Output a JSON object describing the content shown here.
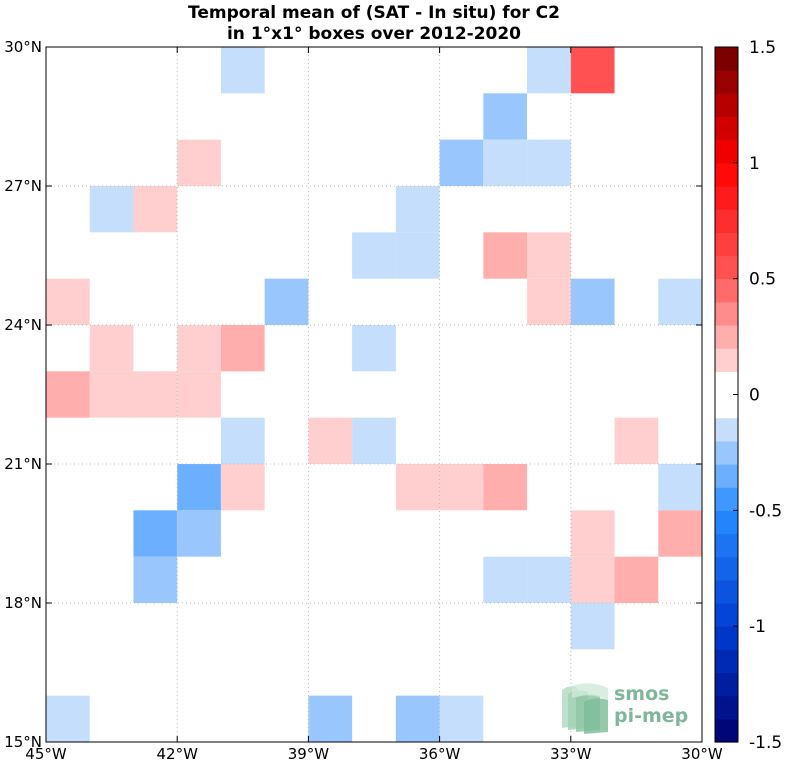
{
  "chart_data": {
    "type": "heatmap",
    "title_lines": [
      "Temporal mean of (SAT - In situ) for C2",
      "in 1°x1° boxes over 2012-2020"
    ],
    "xlim": [
      -45,
      -30
    ],
    "ylim": [
      15,
      30
    ],
    "x_ticks": [
      {
        "value": -45,
        "label": "45°W"
      },
      {
        "value": -42,
        "label": "42°W"
      },
      {
        "value": -39,
        "label": "39°W"
      },
      {
        "value": -36,
        "label": "36°W"
      },
      {
        "value": -33,
        "label": "33°W"
      },
      {
        "value": -30,
        "label": "30°W"
      }
    ],
    "y_ticks": [
      {
        "value": 15,
        "label": "15°N"
      },
      {
        "value": 18,
        "label": "18°N"
      },
      {
        "value": 21,
        "label": "21°N"
      },
      {
        "value": 24,
        "label": "24°N"
      },
      {
        "value": 27,
        "label": "27°N"
      },
      {
        "value": 30,
        "label": "30°N"
      }
    ],
    "grid": true,
    "box_size_deg": 1,
    "colorbar": {
      "range": [
        -1.5,
        1.5
      ],
      "levels": 30,
      "ticks": [
        {
          "value": 1.5,
          "label": "1.5"
        },
        {
          "value": 1,
          "label": "1"
        },
        {
          "value": 0.5,
          "label": "0.5"
        },
        {
          "value": 0,
          "label": "0"
        },
        {
          "value": -0.5,
          "label": "-0.5"
        },
        {
          "value": -1,
          "label": "-1"
        },
        {
          "value": -1.5,
          "label": "-1.5"
        }
      ]
    },
    "cells": [
      {
        "lon": -41,
        "lat": 29,
        "value": -0.15
      },
      {
        "lon": -34,
        "lat": 29,
        "value": -0.15
      },
      {
        "lon": -33,
        "lat": 29,
        "value": 0.55
      },
      {
        "lon": -35,
        "lat": 28,
        "value": -0.25
      },
      {
        "lon": -42,
        "lat": 27,
        "value": 0.15
      },
      {
        "lon": -36,
        "lat": 27,
        "value": -0.25
      },
      {
        "lon": -35,
        "lat": 27,
        "value": -0.15
      },
      {
        "lon": -34,
        "lat": 27,
        "value": -0.15
      },
      {
        "lon": -44,
        "lat": 26,
        "value": -0.15
      },
      {
        "lon": -43,
        "lat": 26,
        "value": 0.15
      },
      {
        "lon": -37,
        "lat": 26,
        "value": -0.15
      },
      {
        "lon": -38,
        "lat": 25,
        "value": -0.15
      },
      {
        "lon": -37,
        "lat": 25,
        "value": -0.15
      },
      {
        "lon": -35,
        "lat": 25,
        "value": 0.25
      },
      {
        "lon": -34,
        "lat": 25,
        "value": 0.15
      },
      {
        "lon": -45,
        "lat": 24,
        "value": 0.15
      },
      {
        "lon": -40,
        "lat": 24,
        "value": -0.25
      },
      {
        "lon": -34,
        "lat": 24,
        "value": 0.15
      },
      {
        "lon": -33,
        "lat": 24,
        "value": -0.25
      },
      {
        "lon": -31,
        "lat": 24,
        "value": -0.15
      },
      {
        "lon": -44,
        "lat": 23,
        "value": 0.15
      },
      {
        "lon": -42,
        "lat": 23,
        "value": 0.15
      },
      {
        "lon": -41,
        "lat": 23,
        "value": 0.25
      },
      {
        "lon": -38,
        "lat": 23,
        "value": -0.15
      },
      {
        "lon": -45,
        "lat": 22,
        "value": 0.25
      },
      {
        "lon": -44,
        "lat": 22,
        "value": 0.15
      },
      {
        "lon": -43,
        "lat": 22,
        "value": 0.15
      },
      {
        "lon": -42,
        "lat": 22,
        "value": 0.15
      },
      {
        "lon": -41,
        "lat": 21,
        "value": -0.15
      },
      {
        "lon": -39,
        "lat": 21,
        "value": 0.15
      },
      {
        "lon": -38,
        "lat": 21,
        "value": -0.15
      },
      {
        "lon": -32,
        "lat": 21,
        "value": 0.15
      },
      {
        "lon": -42,
        "lat": 20,
        "value": -0.35
      },
      {
        "lon": -41,
        "lat": 20,
        "value": 0.15
      },
      {
        "lon": -37,
        "lat": 20,
        "value": 0.15
      },
      {
        "lon": -36,
        "lat": 20,
        "value": 0.15
      },
      {
        "lon": -35,
        "lat": 20,
        "value": 0.25
      },
      {
        "lon": -31,
        "lat": 20,
        "value": -0.15
      },
      {
        "lon": -43,
        "lat": 19,
        "value": -0.35
      },
      {
        "lon": -42,
        "lat": 19,
        "value": -0.25
      },
      {
        "lon": -33,
        "lat": 19,
        "value": 0.15
      },
      {
        "lon": -31,
        "lat": 19,
        "value": 0.25
      },
      {
        "lon": -43,
        "lat": 18,
        "value": -0.25
      },
      {
        "lon": -35,
        "lat": 18,
        "value": -0.15
      },
      {
        "lon": -34,
        "lat": 18,
        "value": -0.15
      },
      {
        "lon": -33,
        "lat": 18,
        "value": 0.15
      },
      {
        "lon": -32,
        "lat": 18,
        "value": 0.25
      },
      {
        "lon": -33,
        "lat": 17,
        "value": -0.15
      },
      {
        "lon": -45,
        "lat": 15,
        "value": -0.15
      },
      {
        "lon": -39,
        "lat": 15,
        "value": -0.25
      },
      {
        "lon": -37,
        "lat": 15,
        "value": -0.25
      },
      {
        "lon": -36,
        "lat": 15,
        "value": -0.15
      }
    ]
  },
  "logo": {
    "line1": "smos",
    "line2": "pi-mep"
  }
}
